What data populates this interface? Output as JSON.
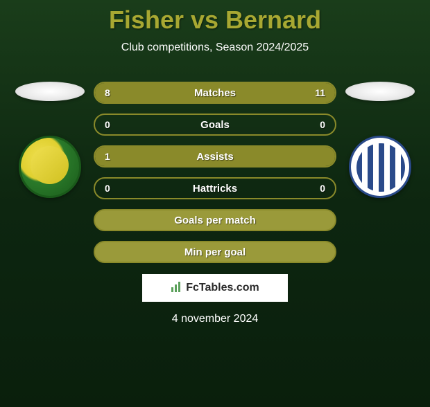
{
  "title": "Fisher vs Bernard",
  "subtitle": "Club competitions, Season 2024/2025",
  "date": "4 november 2024",
  "watermark": "FcTables.com",
  "colors": {
    "accent": "#a8a832",
    "bar_fill": "#8a8a2a",
    "bar_filled_bg": "#9a9a3a",
    "text": "#ffffff",
    "badge_left_primary": "#f0e050",
    "badge_left_secondary": "#1a5a1a",
    "badge_right_primary": "#ffffff",
    "badge_right_secondary": "#2a4a8a"
  },
  "stats": [
    {
      "label": "Matches",
      "left_value": "8",
      "right_value": "11",
      "left_fill_pct": 42,
      "right_fill_pct": 58,
      "filled": false
    },
    {
      "label": "Goals",
      "left_value": "0",
      "right_value": "0",
      "left_fill_pct": 0,
      "right_fill_pct": 0,
      "filled": false
    },
    {
      "label": "Assists",
      "left_value": "1",
      "right_value": "",
      "left_fill_pct": 100,
      "right_fill_pct": 0,
      "filled": false
    },
    {
      "label": "Hattricks",
      "left_value": "0",
      "right_value": "0",
      "left_fill_pct": 0,
      "right_fill_pct": 0,
      "filled": false
    },
    {
      "label": "Goals per match",
      "left_value": "",
      "right_value": "",
      "left_fill_pct": 0,
      "right_fill_pct": 0,
      "filled": true
    },
    {
      "label": "Min per goal",
      "left_value": "",
      "right_value": "",
      "left_fill_pct": 0,
      "right_fill_pct": 0,
      "filled": true
    }
  ]
}
